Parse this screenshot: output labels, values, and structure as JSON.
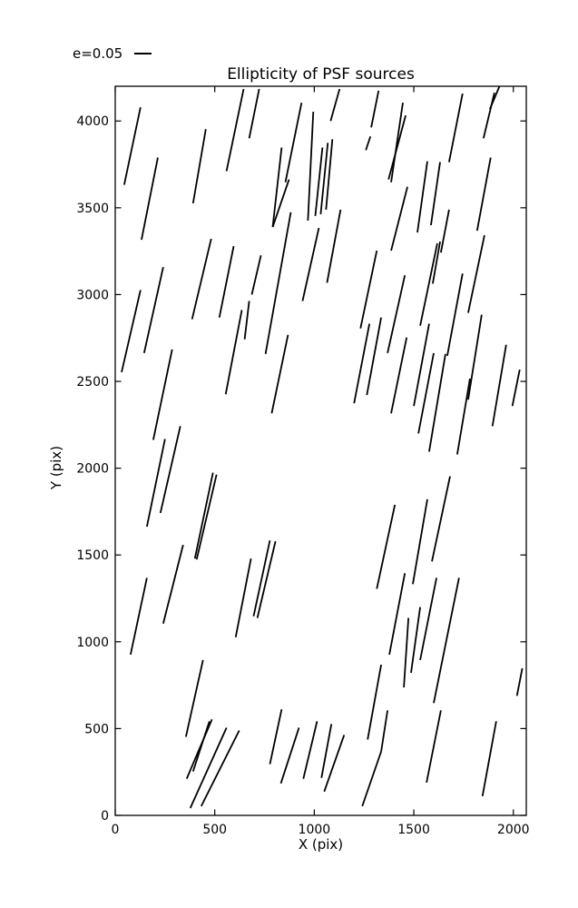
{
  "chart_data": {
    "type": "line",
    "mark": "line-segments",
    "title": "Ellipticity of PSF sources",
    "xlabel": "X (pix)",
    "ylabel": "Y (pix)",
    "xlim": [
      0,
      2065
    ],
    "ylim": [
      0,
      4200
    ],
    "xticks": [
      0,
      500,
      1000,
      1500,
      2000
    ],
    "yticks": [
      0,
      500,
      1000,
      1500,
      2000,
      2500,
      3000,
      3500,
      4000
    ],
    "grid": false,
    "legend": {
      "label": "e=0.05",
      "scale_e": 0.05,
      "position": "above-left"
    },
    "series_color": "#000000",
    "background_color": "#ffffff",
    "segments": [
      [
        45,
        3632,
        127,
        4079
      ],
      [
        132,
        3316,
        214,
        3789
      ],
      [
        391,
        3526,
        455,
        3953
      ],
      [
        559,
        3711,
        645,
        4184
      ],
      [
        386,
        2858,
        482,
        3321
      ],
      [
        523,
        2868,
        595,
        3279
      ],
      [
        673,
        3900,
        723,
        4184
      ],
      [
        855,
        3647,
        936,
        4105
      ],
      [
        968,
        3426,
        995,
        4053
      ],
      [
        791,
        3389,
        836,
        3847
      ],
      [
        791,
        3389,
        873,
        3663
      ],
      [
        1005,
        3453,
        1041,
        3847
      ],
      [
        1032,
        3463,
        1068,
        3874
      ],
      [
        1059,
        3489,
        1091,
        3895
      ],
      [
        1082,
        4000,
        1127,
        4184
      ],
      [
        1286,
        3963,
        1323,
        4174
      ],
      [
        1259,
        3832,
        1282,
        3911
      ],
      [
        755,
        2658,
        882,
        3474
      ],
      [
        941,
        2963,
        1023,
        3384
      ],
      [
        1064,
        3068,
        1132,
        3489
      ],
      [
        686,
        3000,
        732,
        3226
      ],
      [
        1386,
        3647,
        1445,
        4105
      ],
      [
        1373,
        3663,
        1459,
        4032
      ],
      [
        1677,
        3763,
        1745,
        4158
      ],
      [
        1882,
        4068,
        1945,
        4240
      ],
      [
        1850,
        3900,
        1905,
        4163
      ],
      [
        1518,
        3358,
        1568,
        3768
      ],
      [
        1586,
        3400,
        1632,
        3763
      ],
      [
        1386,
        3253,
        1468,
        3621
      ],
      [
        1636,
        3242,
        1677,
        3489
      ],
      [
        1818,
        3368,
        1886,
        3789
      ],
      [
        1532,
        2821,
        1618,
        3295
      ],
      [
        1595,
        3063,
        1632,
        3305
      ],
      [
        1773,
        2895,
        1855,
        3342
      ],
      [
        32,
        2553,
        127,
        3026
      ],
      [
        145,
        2663,
        241,
        3158
      ],
      [
        191,
        2163,
        286,
        2684
      ],
      [
        555,
        2426,
        636,
        2911
      ],
      [
        650,
        2742,
        673,
        2963
      ],
      [
        159,
        1663,
        250,
        2168
      ],
      [
        227,
        1742,
        327,
        2242
      ],
      [
        786,
        2316,
        868,
        2768
      ],
      [
        1232,
        2805,
        1314,
        3253
      ],
      [
        1200,
        2374,
        1277,
        2832
      ],
      [
        1264,
        2421,
        1336,
        2868
      ],
      [
        1368,
        2663,
        1455,
        3111
      ],
      [
        1668,
        2647,
        1745,
        3121
      ],
      [
        1773,
        2395,
        1841,
        2884
      ],
      [
        1718,
        2079,
        1782,
        2516
      ],
      [
        1386,
        2316,
        1464,
        2753
      ],
      [
        1500,
        2358,
        1577,
        2832
      ],
      [
        1523,
        2200,
        1600,
        2663
      ],
      [
        1577,
        2095,
        1659,
        2658
      ],
      [
        1895,
        2242,
        1964,
        2711
      ],
      [
        1995,
        2358,
        2032,
        2568
      ],
      [
        400,
        1479,
        491,
        1974
      ],
      [
        409,
        1474,
        509,
        1963
      ],
      [
        241,
        1105,
        341,
        1558
      ],
      [
        77,
        926,
        159,
        1368
      ],
      [
        605,
        1026,
        682,
        1479
      ],
      [
        714,
        1137,
        805,
        1579
      ],
      [
        695,
        1147,
        777,
        1584
      ],
      [
        1314,
        1305,
        1405,
        1789
      ],
      [
        1495,
        1332,
        1568,
        1821
      ],
      [
        1591,
        1463,
        1682,
        1953
      ],
      [
        1377,
        926,
        1455,
        1395
      ],
      [
        1450,
        737,
        1473,
        1137
      ],
      [
        1486,
        821,
        1532,
        1200
      ],
      [
        1532,
        895,
        1614,
        1368
      ],
      [
        1600,
        647,
        1727,
        1368
      ],
      [
        355,
        453,
        441,
        895
      ],
      [
        359,
        211,
        486,
        553
      ],
      [
        391,
        253,
        473,
        542
      ],
      [
        377,
        42,
        559,
        505
      ],
      [
        432,
        53,
        623,
        489
      ],
      [
        777,
        295,
        836,
        611
      ],
      [
        832,
        184,
        923,
        505
      ],
      [
        945,
        211,
        1014,
        542
      ],
      [
        1036,
        216,
        1086,
        526
      ],
      [
        1050,
        137,
        1150,
        463
      ],
      [
        1268,
        437,
        1336,
        868
      ],
      [
        1336,
        368,
        1368,
        605
      ],
      [
        1241,
        53,
        1336,
        368
      ],
      [
        1564,
        189,
        1636,
        605
      ],
      [
        1845,
        111,
        1914,
        542
      ],
      [
        2018,
        689,
        2045,
        847
      ]
    ]
  }
}
